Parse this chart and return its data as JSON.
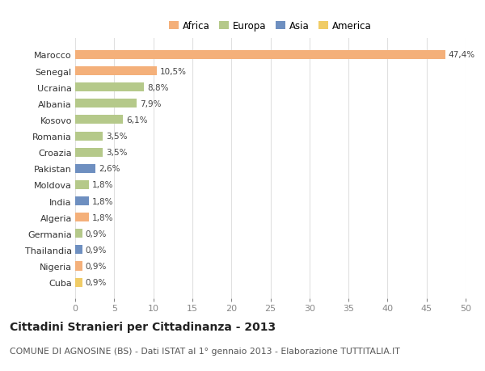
{
  "countries": [
    "Marocco",
    "Senegal",
    "Ucraina",
    "Albania",
    "Kosovo",
    "Romania",
    "Croazia",
    "Pakistan",
    "Moldova",
    "India",
    "Algeria",
    "Germania",
    "Thailandia",
    "Nigeria",
    "Cuba"
  ],
  "values": [
    47.4,
    10.5,
    8.8,
    7.9,
    6.1,
    3.5,
    3.5,
    2.6,
    1.8,
    1.8,
    1.8,
    0.9,
    0.9,
    0.9,
    0.9
  ],
  "labels": [
    "47,4%",
    "10,5%",
    "8,8%",
    "7,9%",
    "6,1%",
    "3,5%",
    "3,5%",
    "2,6%",
    "1,8%",
    "1,8%",
    "1,8%",
    "0,9%",
    "0,9%",
    "0,9%",
    "0,9%"
  ],
  "continents": [
    "Africa",
    "Africa",
    "Europa",
    "Europa",
    "Europa",
    "Europa",
    "Europa",
    "Asia",
    "Europa",
    "Asia",
    "Africa",
    "Europa",
    "Asia",
    "Africa",
    "America"
  ],
  "continent_colors": {
    "Africa": "#F4B07A",
    "Europa": "#B5C98A",
    "Asia": "#6E8FC0",
    "America": "#F0CC66"
  },
  "legend_order": [
    "Africa",
    "Europa",
    "Asia",
    "America"
  ],
  "title": "Cittadini Stranieri per Cittadinanza - 2013",
  "subtitle": "COMUNE DI AGNOSINE (BS) - Dati ISTAT al 1° gennaio 2013 - Elaborazione TUTTITALIA.IT",
  "xlim": [
    0,
    50
  ],
  "xticks": [
    0,
    5,
    10,
    15,
    20,
    25,
    30,
    35,
    40,
    45,
    50
  ],
  "background_color": "#ffffff",
  "grid_color": "#e0e0e0",
  "bar_height": 0.55,
  "label_fontsize": 7.5,
  "ytick_fontsize": 8,
  "xtick_fontsize": 8,
  "title_fontsize": 10,
  "subtitle_fontsize": 7.8,
  "legend_fontsize": 8.5
}
